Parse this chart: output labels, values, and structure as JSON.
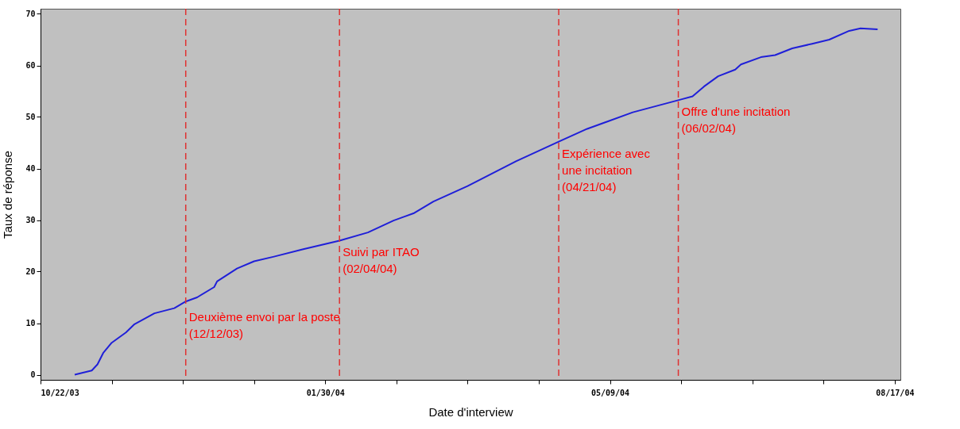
{
  "chart_data": {
    "type": "line",
    "xlabel": "Date d'interview",
    "ylabel": "Taux de réponse",
    "xlim": [
      "2003-10-22",
      "2004-08-19"
    ],
    "ylim": [
      -1,
      71
    ],
    "xticks": [
      {
        "value": "2003-10-22",
        "label": "10/22/03"
      },
      {
        "value": "2003-11-16",
        "label": null
      },
      {
        "value": "2003-12-11",
        "label": null
      },
      {
        "value": "2004-01-05",
        "label": null
      },
      {
        "value": "2004-01-30",
        "label": "01/30/04"
      },
      {
        "value": "2004-02-24",
        "label": null
      },
      {
        "value": "2004-03-20",
        "label": null
      },
      {
        "value": "2004-04-14",
        "label": null
      },
      {
        "value": "2004-05-09",
        "label": "05/09/04"
      },
      {
        "value": "2004-06-03",
        "label": null
      },
      {
        "value": "2004-06-28",
        "label": null
      },
      {
        "value": "2004-07-23",
        "label": null
      },
      {
        "value": "2004-08-17",
        "label": "08/17/04"
      }
    ],
    "yticks": [
      0,
      10,
      20,
      30,
      40,
      50,
      60,
      70
    ],
    "grid": false,
    "marker": "none",
    "line_style": "solid",
    "x": [
      "2003-11-03",
      "2003-11-09",
      "2003-11-11",
      "2003-11-13",
      "2003-11-16",
      "2003-11-21",
      "2003-11-24",
      "2003-12-01",
      "2003-12-08",
      "2003-12-12",
      "2003-12-16",
      "2003-12-22",
      "2003-12-23",
      "2003-12-30",
      "2004-01-05",
      "2004-01-12",
      "2004-01-22",
      "2004-02-04",
      "2004-02-14",
      "2004-02-23",
      "2004-03-01",
      "2004-03-08",
      "2004-03-20",
      "2004-04-06",
      "2004-04-21",
      "2004-05-01",
      "2004-05-17",
      "2004-06-03",
      "2004-06-07",
      "2004-06-11",
      "2004-06-16",
      "2004-06-22",
      "2004-06-24",
      "2004-07-01",
      "2004-07-06",
      "2004-07-12",
      "2004-07-19",
      "2004-07-25",
      "2004-08-01",
      "2004-08-05",
      "2004-08-11"
    ],
    "series": [
      {
        "color": "#1f1fd8",
        "values": [
          0,
          0.8,
          2,
          4.2,
          6.2,
          8.2,
          9.8,
          11.9,
          12.9,
          14.2,
          15,
          17,
          18.1,
          20.6,
          22,
          22.9,
          24.3,
          26,
          27.6,
          29.9,
          31.3,
          33.6,
          36.6,
          41.4,
          45.2,
          47.7,
          50.9,
          53.4,
          54,
          55.9,
          57.9,
          59.2,
          60.2,
          61.6,
          62,
          63.3,
          64.2,
          65,
          66.7,
          67.2,
          67
        ]
      }
    ],
    "ref_lines": [
      {
        "axis": "x",
        "value": "2003-12-12",
        "label": "Deuxième envoi par la poste\n(12/12/03)",
        "color": "#e03030",
        "line_style": "dashed"
      },
      {
        "axis": "x",
        "value": "2004-02-04",
        "label": "Suivi par ITAO\n(02/04/04)",
        "color": "#e03030",
        "line_style": "dashed"
      },
      {
        "axis": "x",
        "value": "2004-04-21",
        "label": "Expérience avec\nune incitation\n(04/21/04)",
        "color": "#e03030",
        "line_style": "dashed"
      },
      {
        "axis": "x",
        "value": "2004-06-02",
        "label": "Offre d'une incitation\n(06/02/04)",
        "color": "#e03030",
        "line_style": "dashed"
      }
    ]
  }
}
